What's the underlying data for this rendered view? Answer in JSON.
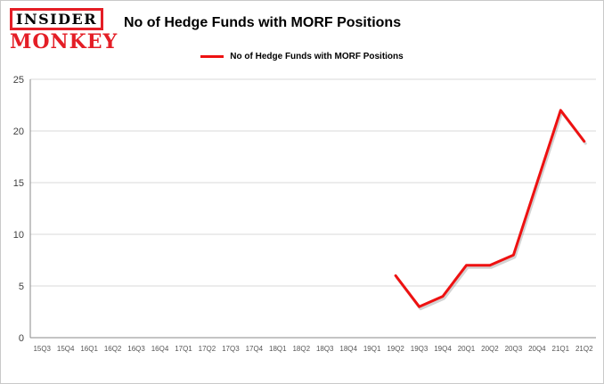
{
  "header": {
    "logo": {
      "line1": "INSIDER",
      "line2": "MONKEY",
      "accent_color": "#e41e26"
    },
    "title": "No of Hedge Funds with MORF Positions"
  },
  "legend": {
    "label": "No of Hedge Funds with MORF Positions",
    "swatch_color": "#ee1111"
  },
  "chart_data": {
    "type": "line",
    "title": "No of Hedge Funds with MORF Positions",
    "categories": [
      "15Q3",
      "15Q4",
      "16Q1",
      "16Q2",
      "16Q3",
      "16Q4",
      "17Q1",
      "17Q2",
      "17Q3",
      "17Q4",
      "18Q1",
      "18Q2",
      "18Q3",
      "18Q4",
      "19Q1",
      "19Q2",
      "19Q3",
      "19Q4",
      "20Q1",
      "20Q2",
      "20Q3",
      "20Q4",
      "21Q1",
      "21Q2"
    ],
    "values": [
      null,
      null,
      null,
      null,
      null,
      null,
      null,
      null,
      null,
      null,
      null,
      null,
      null,
      null,
      null,
      6,
      3,
      4,
      7,
      7,
      8,
      15,
      22,
      19
    ],
    "xlabel": "",
    "ylabel": "",
    "ylim": [
      0,
      25
    ],
    "yticks": [
      0,
      5,
      10,
      15,
      20,
      25
    ],
    "grid": true,
    "legend_position": "top",
    "line_color": "#ee1111",
    "grid_color": "#d9d9d9",
    "axis_color": "#8a8a8a",
    "tick_label_color": "#555555"
  }
}
